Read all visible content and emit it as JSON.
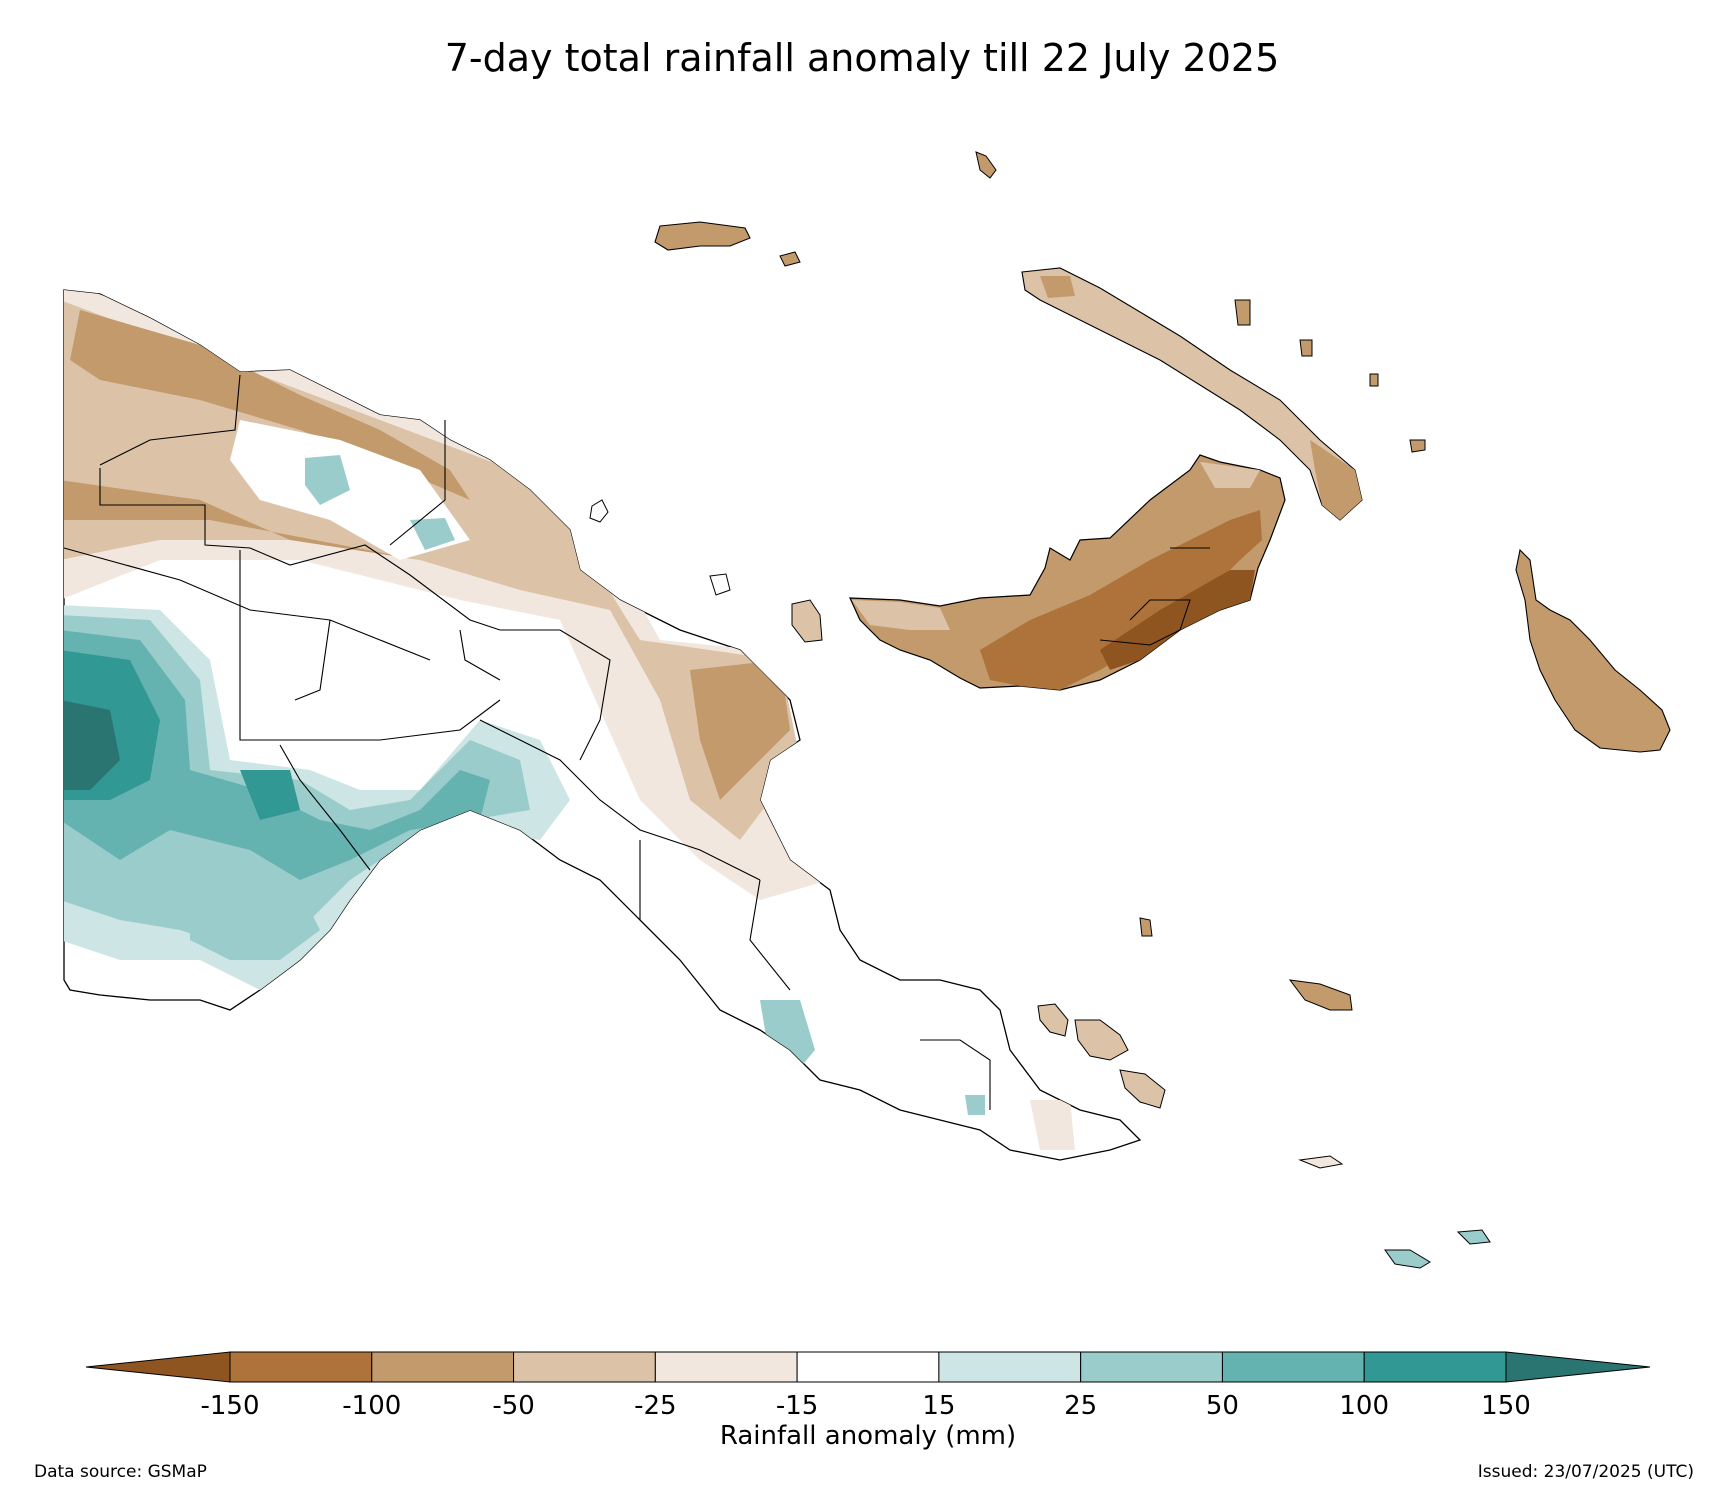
{
  "title": "7-day total rainfall anomaly till 22 July 2025",
  "colorbar": {
    "label": "Rainfall anomaly (mm)",
    "ticks": [
      "-150",
      "-100",
      "-50",
      "-25",
      "-15",
      "15",
      "25",
      "50",
      "100",
      "150"
    ],
    "under_color": "#8f5520",
    "over_color": "#2a7472",
    "bins": [
      {
        "from": -150,
        "to": -100,
        "color": "#ad733b"
      },
      {
        "from": -100,
        "to": -50,
        "color": "#c39a6c"
      },
      {
        "from": -50,
        "to": -25,
        "color": "#dcc3a8"
      },
      {
        "from": -25,
        "to": -15,
        "color": "#f1e7de"
      },
      {
        "from": -15,
        "to": 15,
        "color": "#ffffff"
      },
      {
        "from": 15,
        "to": 25,
        "color": "#cde6e5"
      },
      {
        "from": 25,
        "to": 50,
        "color": "#99cccb"
      },
      {
        "from": 50,
        "to": 100,
        "color": "#64b3b1"
      },
      {
        "from": 100,
        "to": 150,
        "color": "#319894"
      }
    ]
  },
  "footer": {
    "source": "Data source: GSMaP",
    "issued": "Issued: 23/07/2025 (UTC)"
  }
}
